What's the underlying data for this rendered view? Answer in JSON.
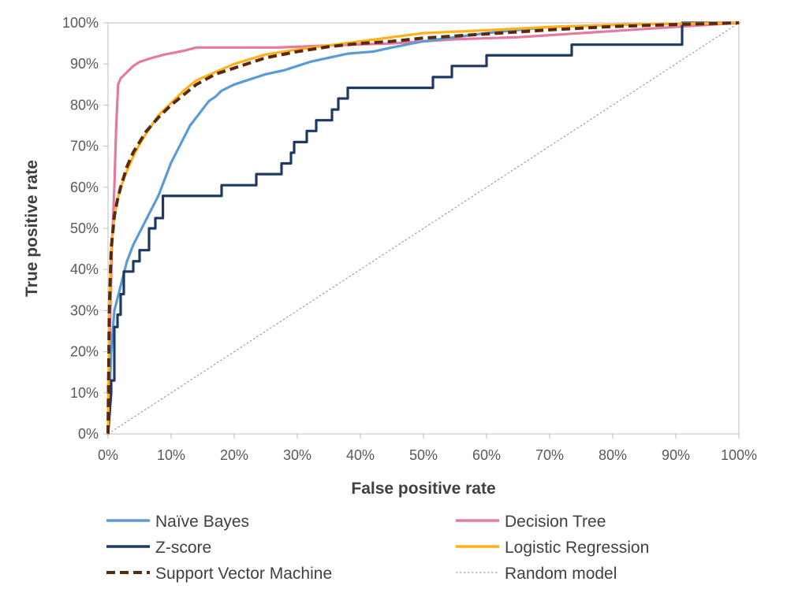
{
  "chart_data": {
    "type": "line",
    "title": "",
    "xlabel": "False positive rate",
    "ylabel": "True positive rate",
    "xlim": [
      0,
      100
    ],
    "ylim": [
      0,
      100
    ],
    "x_ticks": [
      0,
      10,
      20,
      30,
      40,
      50,
      60,
      70,
      80,
      90,
      100
    ],
    "y_ticks": [
      0,
      10,
      20,
      30,
      40,
      50,
      60,
      70,
      80,
      90,
      100
    ],
    "x_tick_labels": [
      "0%",
      "10%",
      "20%",
      "30%",
      "40%",
      "50%",
      "60%",
      "70%",
      "80%",
      "90%",
      "100%"
    ],
    "y_tick_labels": [
      "0%",
      "10%",
      "20%",
      "30%",
      "40%",
      "50%",
      "60%",
      "70%",
      "80%",
      "90%",
      "100%"
    ],
    "grid": false,
    "legend_position": "bottom",
    "series": [
      {
        "name": "Naïve Bayes",
        "color": "#5b9bd5",
        "style": "solid",
        "points": [
          [
            0,
            0
          ],
          [
            0.5,
            20
          ],
          [
            1,
            30
          ],
          [
            2,
            36
          ],
          [
            3,
            42
          ],
          [
            4,
            46
          ],
          [
            5,
            49
          ],
          [
            6,
            52
          ],
          [
            7,
            55
          ],
          [
            8,
            58
          ],
          [
            9,
            62
          ],
          [
            10,
            66
          ],
          [
            11,
            69
          ],
          [
            12,
            72
          ],
          [
            13,
            75
          ],
          [
            14,
            77
          ],
          [
            15,
            79
          ],
          [
            16,
            81
          ],
          [
            17,
            82
          ],
          [
            18,
            83.5
          ],
          [
            20,
            85
          ],
          [
            22,
            86
          ],
          [
            25,
            87.5
          ],
          [
            28,
            88.5
          ],
          [
            30,
            89.5
          ],
          [
            32,
            90.5
          ],
          [
            35,
            91.5
          ],
          [
            38,
            92.5
          ],
          [
            42,
            93
          ],
          [
            45,
            94
          ],
          [
            50,
            95.5
          ],
          [
            55,
            96.5
          ],
          [
            60,
            97.5
          ],
          [
            70,
            99
          ],
          [
            80,
            99.5
          ],
          [
            90,
            99.8
          ],
          [
            100,
            100
          ]
        ]
      },
      {
        "name": "Decision Tree",
        "color": "#e57aa0",
        "style": "solid",
        "points": [
          [
            0,
            0
          ],
          [
            0.3,
            25
          ],
          [
            0.6,
            45
          ],
          [
            1,
            60
          ],
          [
            1.3,
            75
          ],
          [
            1.6,
            85
          ],
          [
            2,
            86.5
          ],
          [
            3,
            88
          ],
          [
            4,
            89.5
          ],
          [
            5,
            90.5
          ],
          [
            7,
            91.5
          ],
          [
            9,
            92.3
          ],
          [
            12,
            93.2
          ],
          [
            14,
            94
          ],
          [
            20,
            94
          ],
          [
            27,
            94
          ],
          [
            35,
            94.5
          ],
          [
            45,
            95
          ],
          [
            55,
            96
          ],
          [
            65,
            96.5
          ],
          [
            75,
            97.5
          ],
          [
            85,
            98.5
          ],
          [
            95,
            99.5
          ],
          [
            100,
            100
          ]
        ]
      },
      {
        "name": "Z-score",
        "color": "#1f3864",
        "style": "solid",
        "points": [
          [
            0,
            0
          ],
          [
            0.5,
            10
          ],
          [
            0.5,
            13
          ],
          [
            1,
            13
          ],
          [
            1,
            26
          ],
          [
            1.5,
            26
          ],
          [
            1.5,
            29
          ],
          [
            2,
            29
          ],
          [
            2,
            34
          ],
          [
            2.5,
            34
          ],
          [
            2.5,
            39.5
          ],
          [
            4,
            39.5
          ],
          [
            4,
            42
          ],
          [
            5,
            42
          ],
          [
            5,
            44.7
          ],
          [
            6.5,
            44.7
          ],
          [
            6.5,
            50
          ],
          [
            7.5,
            50
          ],
          [
            7.5,
            52.5
          ],
          [
            8.7,
            52.5
          ],
          [
            8.7,
            57.9
          ],
          [
            18,
            57.9
          ],
          [
            18,
            60.5
          ],
          [
            23.5,
            60.5
          ],
          [
            23.5,
            63.2
          ],
          [
            27.5,
            63.2
          ],
          [
            27.5,
            65.8
          ],
          [
            29,
            65.8
          ],
          [
            29,
            68.4
          ],
          [
            29.5,
            68.4
          ],
          [
            29.5,
            71
          ],
          [
            31.5,
            71
          ],
          [
            31.5,
            73.7
          ],
          [
            33,
            73.7
          ],
          [
            33,
            76.3
          ],
          [
            35.5,
            76.3
          ],
          [
            35.5,
            78.9
          ],
          [
            36.5,
            78.9
          ],
          [
            36.5,
            81.6
          ],
          [
            38,
            81.6
          ],
          [
            38,
            84.2
          ],
          [
            51.5,
            84.2
          ],
          [
            51.5,
            86.8
          ],
          [
            54.5,
            86.8
          ],
          [
            54.5,
            89.5
          ],
          [
            60,
            89.5
          ],
          [
            60,
            92.1
          ],
          [
            73.5,
            92.1
          ],
          [
            73.5,
            94.7
          ],
          [
            91,
            94.7
          ],
          [
            91,
            100
          ],
          [
            100,
            100
          ]
        ]
      },
      {
        "name": "Logistic Regression",
        "color": "#ffb11a",
        "style": "solid",
        "points": [
          [
            0,
            0
          ],
          [
            0.2,
            30
          ],
          [
            0.5,
            45
          ],
          [
            1,
            53
          ],
          [
            1.5,
            57
          ],
          [
            2,
            60
          ],
          [
            3,
            64
          ],
          [
            4,
            67.5
          ],
          [
            5,
            70.5
          ],
          [
            6,
            73
          ],
          [
            8,
            77.5
          ],
          [
            10,
            80.5
          ],
          [
            12,
            83.5
          ],
          [
            14,
            86
          ],
          [
            17,
            88
          ],
          [
            20,
            90
          ],
          [
            25,
            92.3
          ],
          [
            30,
            93.5
          ],
          [
            35,
            94.5
          ],
          [
            40,
            95.5
          ],
          [
            45,
            96.5
          ],
          [
            50,
            97.5
          ],
          [
            60,
            98.2
          ],
          [
            70,
            99
          ],
          [
            80,
            99.5
          ],
          [
            90,
            99.8
          ],
          [
            100,
            100
          ]
        ]
      },
      {
        "name": "Support Vector Machine",
        "color": "#5a2a0f",
        "style": "dashed",
        "points": [
          [
            0,
            0
          ],
          [
            0.2,
            30
          ],
          [
            0.5,
            45
          ],
          [
            1,
            53
          ],
          [
            1.5,
            57
          ],
          [
            2,
            60
          ],
          [
            3,
            65
          ],
          [
            4,
            68.5
          ],
          [
            5,
            71
          ],
          [
            6,
            73.5
          ],
          [
            8,
            77
          ],
          [
            10,
            80
          ],
          [
            12,
            82.5
          ],
          [
            14,
            85
          ],
          [
            17,
            87.5
          ],
          [
            20,
            89
          ],
          [
            25,
            91.5
          ],
          [
            30,
            93
          ],
          [
            35,
            94.2
          ],
          [
            40,
            95
          ],
          [
            45,
            95.5
          ],
          [
            50,
            96.3
          ],
          [
            60,
            97.3
          ],
          [
            70,
            98.3
          ],
          [
            80,
            99.1
          ],
          [
            90,
            99.6
          ],
          [
            100,
            100
          ]
        ]
      },
      {
        "name": "Random model",
        "color": "#8c8c8c",
        "style": "dotted",
        "points": [
          [
            0,
            0
          ],
          [
            100,
            100
          ]
        ]
      }
    ]
  }
}
